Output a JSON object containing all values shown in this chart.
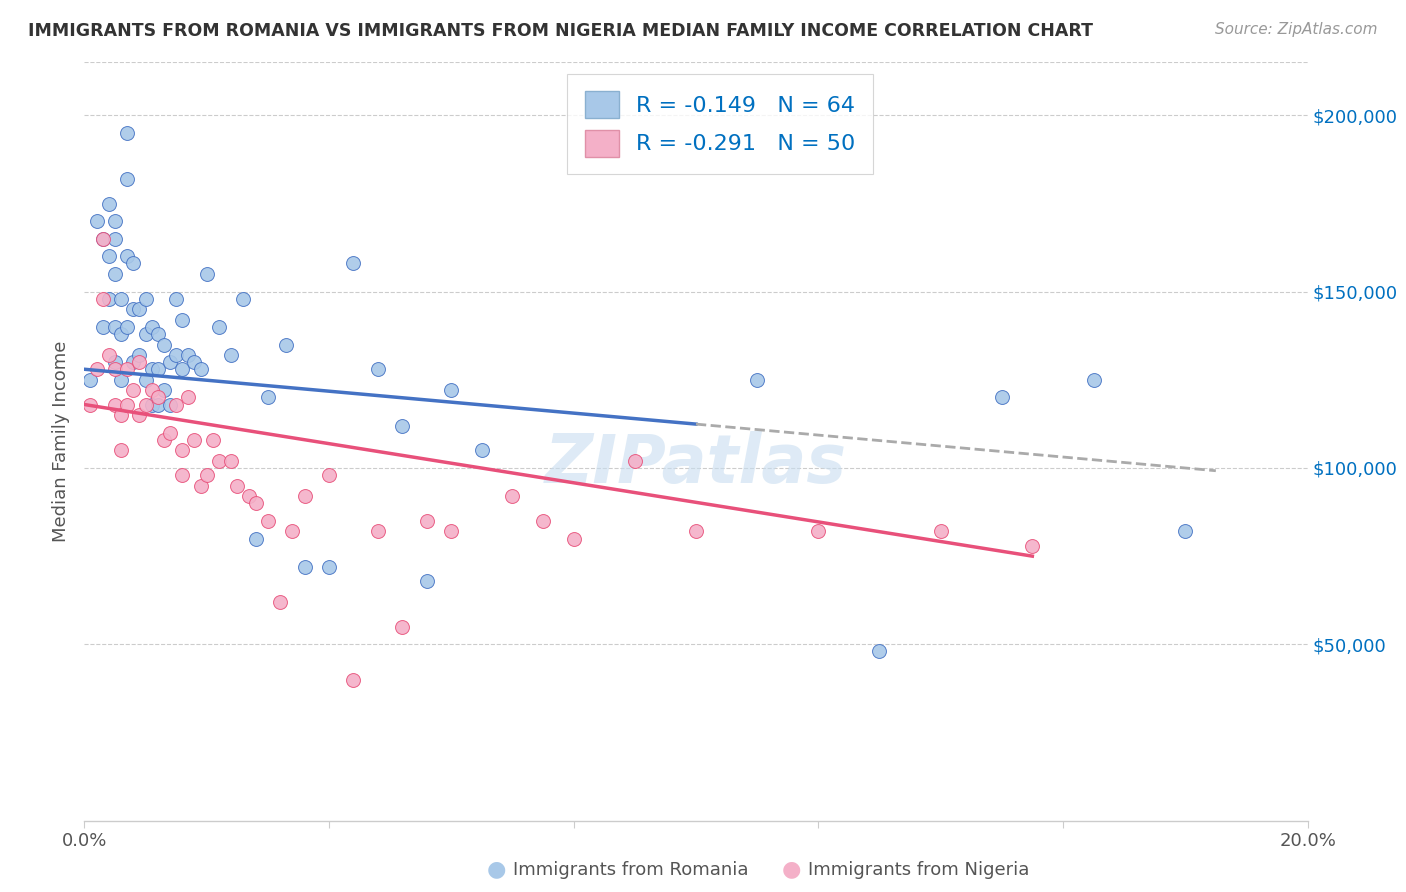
{
  "title": "IMMIGRANTS FROM ROMANIA VS IMMIGRANTS FROM NIGERIA MEDIAN FAMILY INCOME CORRELATION CHART",
  "source": "Source: ZipAtlas.com",
  "ylabel": "Median Family Income",
  "xlim": [
    0.0,
    0.2
  ],
  "ylim": [
    0,
    215000
  ],
  "romania_color": "#a8c8e8",
  "nigeria_color": "#f4b0c8",
  "romania_R": -0.149,
  "romania_N": 64,
  "nigeria_R": -0.291,
  "nigeria_N": 50,
  "romania_line_color": "#4472c4",
  "nigeria_line_color": "#e8507a",
  "legend_color": "#0070c0",
  "watermark": "ZIPatlas",
  "romania_x": [
    0.001,
    0.002,
    0.003,
    0.003,
    0.004,
    0.004,
    0.004,
    0.005,
    0.005,
    0.005,
    0.005,
    0.005,
    0.006,
    0.006,
    0.006,
    0.007,
    0.007,
    0.007,
    0.007,
    0.008,
    0.008,
    0.008,
    0.009,
    0.009,
    0.01,
    0.01,
    0.01,
    0.011,
    0.011,
    0.011,
    0.012,
    0.012,
    0.012,
    0.013,
    0.013,
    0.014,
    0.014,
    0.015,
    0.015,
    0.016,
    0.016,
    0.017,
    0.018,
    0.019,
    0.02,
    0.022,
    0.024,
    0.026,
    0.028,
    0.03,
    0.033,
    0.036,
    0.04,
    0.044,
    0.048,
    0.052,
    0.056,
    0.06,
    0.065,
    0.11,
    0.13,
    0.15,
    0.165,
    0.18
  ],
  "romania_y": [
    125000,
    170000,
    165000,
    140000,
    175000,
    160000,
    148000,
    170000,
    165000,
    155000,
    140000,
    130000,
    148000,
    138000,
    125000,
    195000,
    182000,
    160000,
    140000,
    158000,
    145000,
    130000,
    145000,
    132000,
    148000,
    138000,
    125000,
    140000,
    128000,
    118000,
    138000,
    128000,
    118000,
    135000,
    122000,
    130000,
    118000,
    148000,
    132000,
    142000,
    128000,
    132000,
    130000,
    128000,
    155000,
    140000,
    132000,
    148000,
    80000,
    120000,
    135000,
    72000,
    72000,
    158000,
    128000,
    112000,
    68000,
    122000,
    105000,
    125000,
    48000,
    120000,
    125000,
    82000
  ],
  "nigeria_x": [
    0.001,
    0.002,
    0.003,
    0.003,
    0.004,
    0.005,
    0.005,
    0.006,
    0.006,
    0.007,
    0.007,
    0.008,
    0.009,
    0.009,
    0.01,
    0.011,
    0.012,
    0.013,
    0.014,
    0.015,
    0.016,
    0.016,
    0.017,
    0.018,
    0.019,
    0.02,
    0.021,
    0.022,
    0.024,
    0.025,
    0.027,
    0.028,
    0.03,
    0.032,
    0.034,
    0.036,
    0.04,
    0.044,
    0.048,
    0.052,
    0.056,
    0.06,
    0.07,
    0.075,
    0.08,
    0.09,
    0.1,
    0.12,
    0.14,
    0.155
  ],
  "nigeria_y": [
    118000,
    128000,
    165000,
    148000,
    132000,
    128000,
    118000,
    115000,
    105000,
    128000,
    118000,
    122000,
    130000,
    115000,
    118000,
    122000,
    120000,
    108000,
    110000,
    118000,
    105000,
    98000,
    120000,
    108000,
    95000,
    98000,
    108000,
    102000,
    102000,
    95000,
    92000,
    90000,
    85000,
    62000,
    82000,
    92000,
    98000,
    40000,
    82000,
    55000,
    85000,
    82000,
    92000,
    85000,
    80000,
    102000,
    82000,
    82000,
    82000,
    78000
  ]
}
